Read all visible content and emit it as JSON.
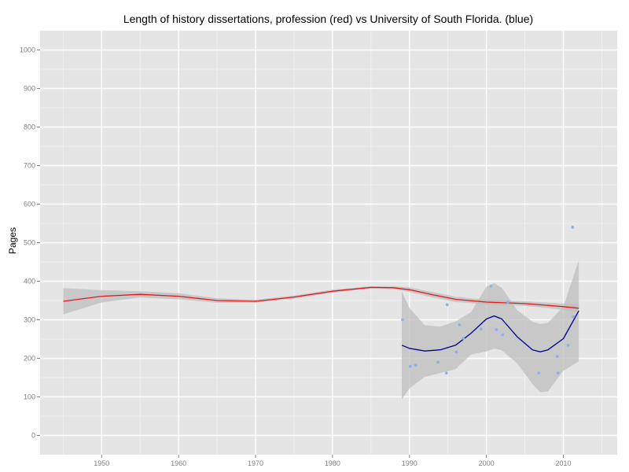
{
  "chart_data": {
    "type": "scatter",
    "title": "Length of history dissertations, profession (red) vs University of South Florida. (blue)",
    "xlabel": "",
    "ylabel": "Pages",
    "xlim": [
      1942,
      2017
    ],
    "ylim": [
      -50,
      1050
    ],
    "x_ticks": [
      1950,
      1960,
      1970,
      1980,
      1990,
      2000,
      2010
    ],
    "y_ticks": [
      0,
      100,
      200,
      300,
      400,
      500,
      600,
      700,
      800,
      900,
      1000
    ],
    "grid": true,
    "colors": {
      "panel": "#e5e5e5",
      "grid_major": "#ffffff",
      "grid_minor": "#f2f2f2",
      "ribbon": "#bdbdbd",
      "profession_line": "#e31a1c",
      "usf_line": "#00008b",
      "usf_points": "#8fb0e6"
    },
    "series": [
      {
        "kind": "points",
        "x": [
          1989.1,
          1990.1,
          1990.8,
          1993.7,
          1994.8,
          1994.9,
          1996.1,
          1996.5,
          1997.0,
          1999.3,
          2000.6,
          2001.3,
          2002.1,
          2002.8,
          2006.8,
          2009.2,
          2009.3,
          2010.6,
          2011.2,
          2011.3
        ],
        "y": [
          300,
          179,
          182,
          190,
          162,
          339,
          216,
          287,
          252,
          276,
          387,
          274,
          261,
          346,
          162,
          205,
          162,
          234,
          540,
          308
        ]
      },
      {
        "kind": "smooth",
        "line_color": "#e31a1c",
        "x": [
          1945,
          1950,
          1955,
          1960,
          1965,
          1970,
          1975,
          1980,
          1985,
          1988,
          1990,
          1993,
          1996,
          2000,
          2005,
          2010,
          2012
        ],
        "y": [
          348,
          361,
          366,
          361,
          350,
          348,
          359,
          374,
          384,
          383,
          378,
          365,
          353,
          346,
          342,
          334,
          330
        ],
        "upper": [
          382,
          377,
          374,
          369,
          356,
          352,
          363,
          378,
          387,
          387,
          384,
          372,
          360,
          352,
          348,
          342,
          341
        ],
        "lower": [
          314,
          345,
          358,
          353,
          344,
          344,
          355,
          370,
          381,
          379,
          372,
          358,
          346,
          340,
          336,
          326,
          319
        ]
      },
      {
        "kind": "smooth",
        "line_color": "#00008b",
        "x": [
          1989,
          1990,
          1992,
          1994,
          1996,
          1998,
          2000,
          2001,
          2002,
          2004,
          2006,
          2007,
          2008,
          2010,
          2012
        ],
        "y": [
          234,
          226,
          219,
          222,
          234,
          265,
          302,
          310,
          302,
          256,
          222,
          217,
          222,
          251,
          323
        ],
        "upper": [
          374,
          330,
          286,
          282,
          296,
          320,
          386,
          395,
          383,
          325,
          295,
          289,
          292,
          334,
          454
        ],
        "lower": [
          94,
          122,
          152,
          162,
          172,
          210,
          218,
          225,
          221,
          187,
          133,
          112,
          114,
          168,
          192
        ]
      }
    ]
  }
}
